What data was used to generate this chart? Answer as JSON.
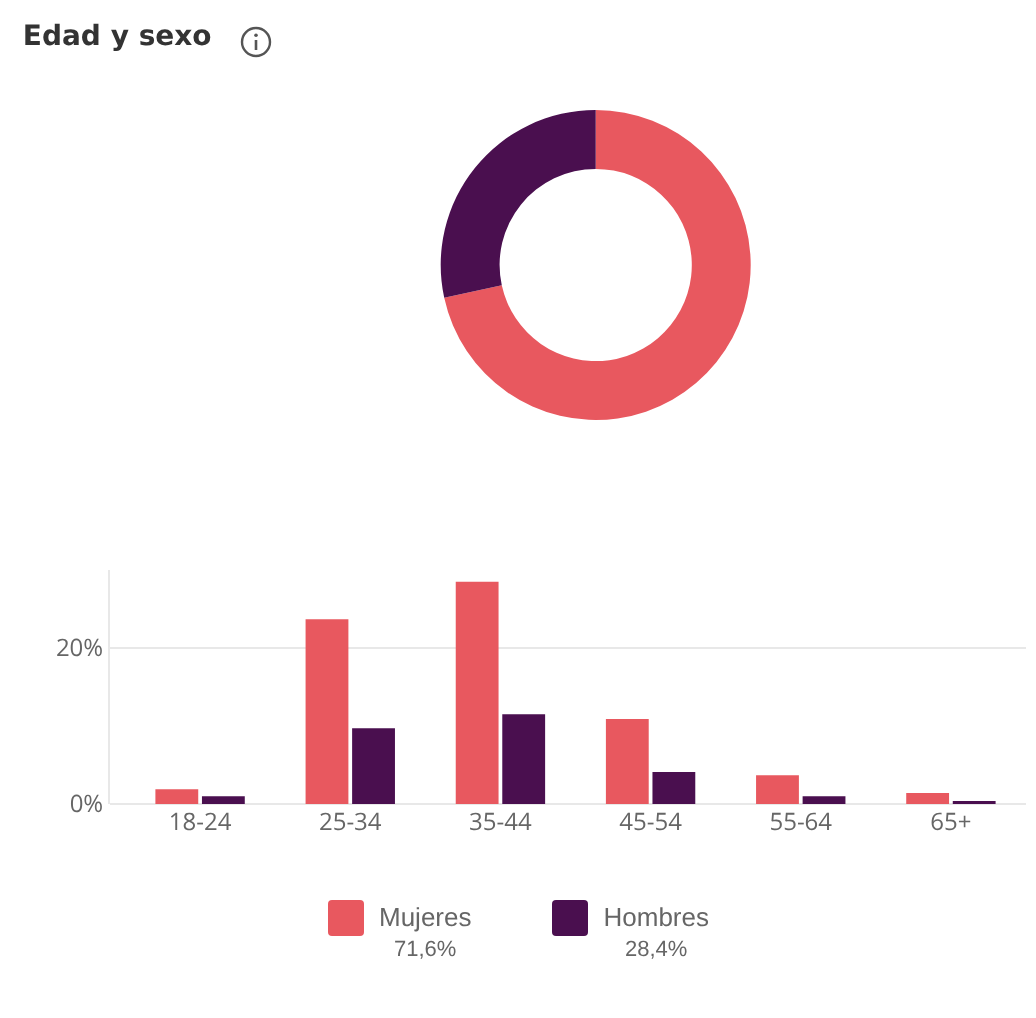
{
  "chart_data": [
    {
      "type": "donut",
      "title": "Edad y sexo",
      "categories": [
        "Mujeres",
        "Hombres"
      ],
      "values": [
        71.6,
        28.4
      ],
      "colors": [
        "#e8585f",
        "#4a0f4f"
      ],
      "value_labels": [
        "71,6%",
        "28,4%"
      ],
      "legend": "bottom"
    },
    {
      "type": "bar",
      "categories": [
        "18-24",
        "25-34",
        "35-44",
        "45-54",
        "55-64",
        "65+"
      ],
      "series": [
        {
          "color": "#e8585f",
          "values": [
            1.9,
            23.7,
            28.5,
            10.9,
            3.7,
            1.4
          ]
        },
        {
          "color": "#4a0f4f",
          "values": [
            1.0,
            9.7,
            11.5,
            4.1,
            1.0,
            0.4
          ]
        }
      ],
      "ylim": [
        0,
        30
      ],
      "yticks": [
        {
          "value": 0,
          "label": "0%"
        },
        {
          "value": 20,
          "label": "20%"
        }
      ],
      "grid": "y",
      "legend": false
    }
  ]
}
